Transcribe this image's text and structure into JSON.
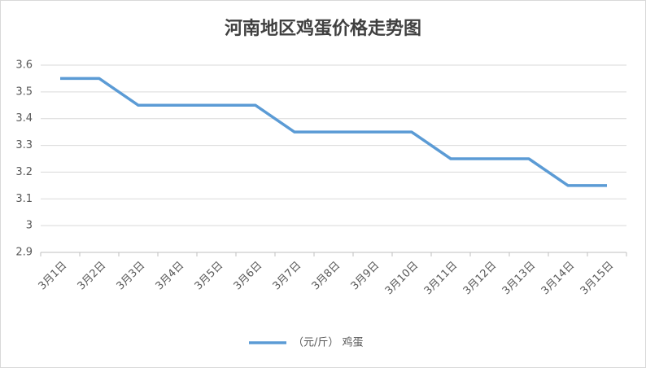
{
  "chart_data": {
    "type": "line",
    "title": "河南地区鸡蛋价格走势图",
    "categories": [
      "3月1日",
      "3月2日",
      "3月3日",
      "3月4日",
      "3月5日",
      "3月6日",
      "3月7日",
      "3月8日",
      "3月9日",
      "3月10日",
      "3月11日",
      "3月12日",
      "3月13日",
      "3月14日",
      "3月15日"
    ],
    "series": [
      {
        "name": "（元/斤） 鸡蛋",
        "color": "#5b9bd5",
        "values": [
          3.55,
          3.55,
          3.45,
          3.45,
          3.45,
          3.45,
          3.35,
          3.35,
          3.35,
          3.35,
          3.25,
          3.25,
          3.25,
          3.15,
          3.15
        ]
      }
    ],
    "ylim": [
      2.9,
      3.6
    ],
    "yticks": [
      2.9,
      3,
      3.1,
      3.2,
      3.3,
      3.4,
      3.5,
      3.6
    ],
    "grid": true,
    "legend": "bottom"
  }
}
